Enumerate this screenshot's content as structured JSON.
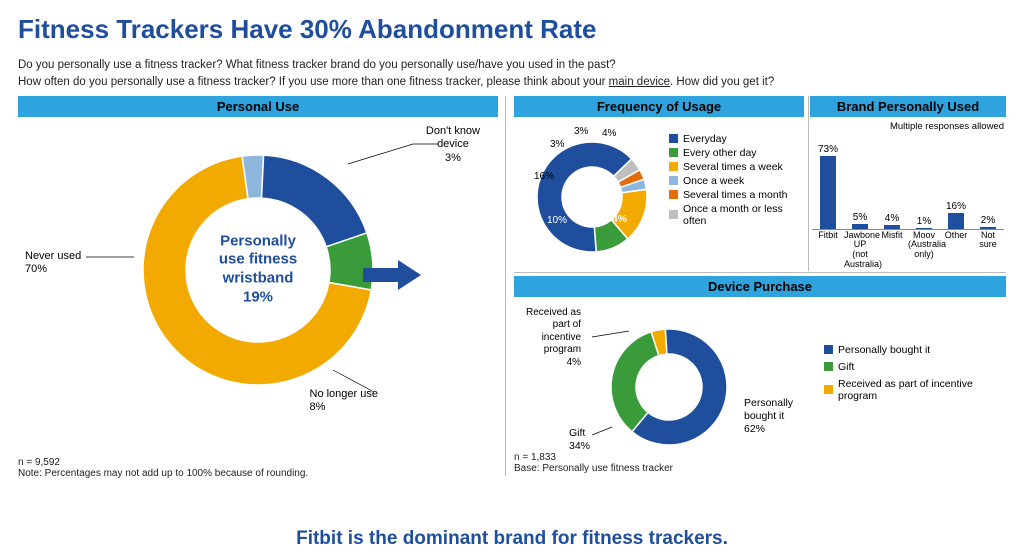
{
  "title": "Fitness Trackers Have 30% Abandonment Rate",
  "question_line1": "Do you personally use a fitness tracker? What fitness tracker brand do you personally use/have you used in the past?",
  "question_line2a": "How often do you personally use a fitness tracker? If you use more than one fitness tracker, please think about your ",
  "question_line2b": "main device",
  "question_line2c": ". How did you get it?",
  "footer": "Fitbit is the dominant brand for fitness trackers.",
  "colors": {
    "blue": "#1f4e9c",
    "green": "#3a9b3a",
    "gold": "#f2a900",
    "lightblue": "#8fb7dd",
    "orange": "#e46c0a",
    "grey": "#bfbfbf",
    "header": "#2ea3dd"
  },
  "personal_use": {
    "header": "Personal Use",
    "center_l1": "Personally",
    "center_l2": "use fitness",
    "center_l3": "wristband",
    "center_l4": "19%",
    "slices": [
      {
        "label": "Never used",
        "pct": 70,
        "value_text": "Never used\n70%",
        "color": "#f2a900"
      },
      {
        "label": "Personally use",
        "pct": 19,
        "value_text": "",
        "color": "#1f4e9c"
      },
      {
        "label": "No longer use",
        "pct": 8,
        "value_text": "No longer use\n8%",
        "color": "#3a9b3a"
      },
      {
        "label": "Don't know device",
        "pct": 3,
        "value_text": "Don't know\ndevice\n3%",
        "color": "#8fb7dd"
      }
    ],
    "note_n": "n = 9,592",
    "note_round": "Note: Percentages may not add up to 100% because of rounding."
  },
  "frequency": {
    "header": "Frequency of Usage",
    "slices": [
      {
        "label": "Everyday",
        "pct": 64,
        "color": "#1f4e9c"
      },
      {
        "label": "Every other day",
        "pct": 10,
        "color": "#3a9b3a"
      },
      {
        "label": "Several times a week",
        "pct": 16,
        "color": "#f2a900"
      },
      {
        "label": "Once a week",
        "pct": 3,
        "color": "#8fb7dd"
      },
      {
        "label": "Several times a month",
        "pct": 3,
        "color": "#e46c0a"
      },
      {
        "label": "Once a month or less often",
        "pct": 4,
        "color": "#bfbfbf"
      }
    ],
    "labels": {
      "v64": "64%",
      "v10": "10%",
      "v16": "16%",
      "v3a": "3%",
      "v3b": "3%",
      "v4": "4%"
    }
  },
  "brand": {
    "header": "Brand Personally Used",
    "note": "Multiple responses allowed",
    "bars": [
      {
        "label": "Fitbit",
        "pct": 73
      },
      {
        "label": "Jawbone UP (not Australia)",
        "pct": 5
      },
      {
        "label": "Misfit",
        "pct": 4
      },
      {
        "label": "Moov (Australia only)",
        "pct": 1
      },
      {
        "label": "Other",
        "pct": 16
      },
      {
        "label": "Not sure",
        "pct": 2
      }
    ],
    "bar_color": "#1f4e9c"
  },
  "device": {
    "header": "Device Purchase",
    "slices": [
      {
        "label": "Personally bought it",
        "pct": 62,
        "color": "#1f4e9c"
      },
      {
        "label": "Gift",
        "pct": 34,
        "color": "#3a9b3a"
      },
      {
        "label": "Received as part of incentive program",
        "pct": 4,
        "color": "#f2a900"
      }
    ],
    "ann_bought": "Personally\nbought it\n62%",
    "ann_gift": "Gift\n34%",
    "ann_inc": "Received as\npart of\nincentive\nprogram\n4%",
    "note_n": "n = 1,833",
    "note_base": "Base: Personally use fitness tracker"
  }
}
